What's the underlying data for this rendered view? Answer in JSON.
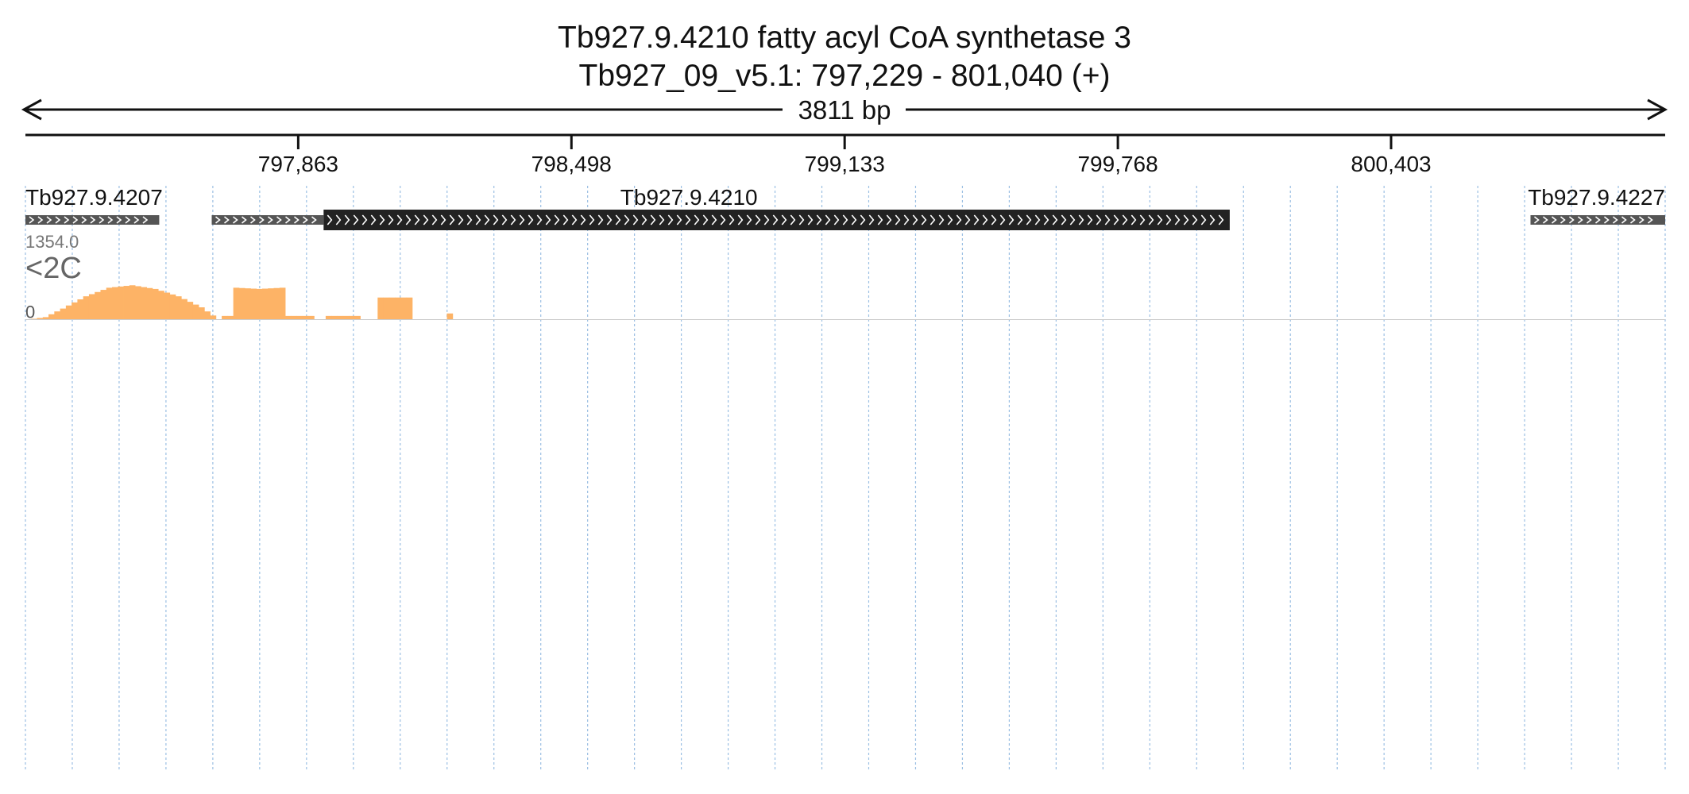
{
  "title_line1": "Tb927.9.4210  fatty acyl CoA synthetase 3",
  "title_line2": "Tb927_09_v5.1: 797,229 - 801,040 (+)",
  "span_label": "3811 bp",
  "colors": {
    "text": "#111111",
    "gene_box": "#222222",
    "gene_thin": "#555555",
    "grid": "#9bbfe3",
    "separator": "#cccccc"
  },
  "chart_data": {
    "type": "area",
    "x_range": [
      797229,
      801040
    ],
    "x_ticks": [
      797863,
      798498,
      799133,
      799768,
      800403
    ],
    "x_tick_labels": [
      "797,863",
      "798,498",
      "799,133",
      "799,768",
      "800,403"
    ],
    "genes": [
      {
        "name": "Tb927.9.4207",
        "show_label": true,
        "strand": "+",
        "segments": [
          {
            "start": 797229,
            "end": 797540,
            "style": "thin"
          }
        ]
      },
      {
        "name": "Tb927.9.4210",
        "show_label": true,
        "strand": "+",
        "segments": [
          {
            "start": 797662,
            "end": 797922,
            "style": "thin"
          },
          {
            "start": 797922,
            "end": 800028,
            "style": "thick"
          }
        ]
      },
      {
        "name": "Tb927.9.4227",
        "show_label": true,
        "strand": "+",
        "segments": [
          {
            "start": 800727,
            "end": 801040,
            "style": "thin"
          }
        ]
      }
    ],
    "track_max_label": "1354.0",
    "track_min_label": "0",
    "ylim": [
      0,
      1354
    ],
    "bins_per_track": 284,
    "tracks": [
      {
        "name": "<2C",
        "color": "#fdb366",
        "profile": [
          [
            0,
            0
          ],
          [
            3,
            40
          ],
          [
            6,
            180
          ],
          [
            10,
            380
          ],
          [
            14,
            520
          ],
          [
            18,
            560
          ],
          [
            22,
            500
          ],
          [
            26,
            380
          ],
          [
            30,
            200
          ],
          [
            33,
            0
          ],
          [
            34,
            60
          ],
          [
            35,
            60
          ],
          [
            36,
            520
          ],
          [
            40,
            500
          ],
          [
            44,
            520
          ],
          [
            45,
            60
          ],
          [
            48,
            60
          ],
          [
            49,
            60
          ],
          [
            50,
            0
          ],
          [
            51,
            0
          ],
          [
            52,
            60
          ],
          [
            56,
            60
          ],
          [
            57,
            60
          ],
          [
            58,
            0
          ],
          [
            59,
            0
          ],
          [
            60,
            0
          ],
          [
            61,
            360
          ],
          [
            65,
            360
          ],
          [
            66,
            360
          ],
          [
            67,
            0
          ],
          [
            68,
            0
          ],
          [
            71,
            0
          ],
          [
            72,
            0
          ],
          [
            73,
            100
          ],
          [
            74,
            0
          ],
          [
            75,
            0
          ],
          [
            76,
            0
          ],
          [
            77,
            0
          ],
          [
            78,
            0
          ],
          [
            79,
            0
          ],
          [
            80,
            0
          ],
          [
            81,
            0
          ],
          [
            82,
            0
          ],
          [
            83,
            0
          ],
          [
            84,
            0
          ],
          [
            85,
            0
          ],
          [
            86,
            0
          ],
          [
            87,
            0
          ],
          [
            88,
            0
          ],
          [
            89,
            0
          ],
          [
            90,
            0
          ],
          [
            91,
            0
          ],
          [
            92,
            0
          ],
          [
            93,
            0
          ],
          [
            94,
            0
          ],
          [
            95,
            0
          ],
          [
            96,
            0
          ],
          [
            97,
            0
          ],
          [
            98,
            0
          ],
          [
            99,
            0
          ],
          [
            100,
            0
          ],
          [
            101,
            0
          ],
          [
            102,
            0
          ],
          [
            103,
            0
          ],
          [
            104,
            0
          ],
          [
            105,
            0
          ],
          [
            106,
            0
          ],
          [
            107,
            0
          ],
          [
            108,
            0
          ],
          [
            109,
            0
          ],
          [
            110,
            0
          ],
          [
            111,
            0
          ],
          [
            112,
            0
          ],
          [
            113,
            0
          ],
          [
            114,
            0
          ],
          [
            115,
            0
          ],
          [
            116,
            0
          ],
          [
            117,
            0
          ],
          [
            118,
            0
          ],
          [
            119,
            0
          ],
          [
            120,
            0
          ],
          [
            121,
            0
          ],
          [
            122,
            0
          ],
          [
            123,
            0
          ],
          [
            124,
            0
          ],
          [
            125,
            0
          ],
          [
            126,
            0
          ],
          [
            127,
            0
          ],
          [
            128,
            0
          ],
          [
            129,
            0
          ],
          [
            130,
            0
          ],
          [
            131,
            0
          ],
          [
            132,
            0
          ],
          [
            133,
            0
          ],
          [
            134,
            0
          ],
          [
            135,
            0
          ],
          [
            136,
            0
          ],
          [
            137,
            0
          ],
          [
            138,
            0
          ],
          [
            139,
            0
          ],
          [
            140,
            0
          ],
          [
            141,
            0
          ],
          [
            142,
            0
          ],
          [
            143,
            0
          ],
          [
            144,
            0
          ],
          [
            145,
            0
          ],
          [
            146,
            0
          ],
          [
            147,
            0
          ],
          [
            148,
            0
          ],
          [
            149,
            0
          ],
          [
            150,
            0
          ],
          [
            151,
            0
          ],
          [
            152,
            0
          ],
          [
            153,
            0
          ],
          [
            154,
            0
          ],
          [
            155,
            0
          ],
          [
            156,
            0
          ],
          [
            157,
            0
          ],
          [
            158,
            0
          ],
          [
            159,
            0
          ],
          [
            160,
            0
          ],
          [
            161,
            0
          ],
          [
            162,
            0
          ],
          [
            163,
            0
          ],
          [
            164,
            0
          ],
          [
            165,
            0
          ],
          [
            166,
            0
          ],
          [
            167,
            0
          ],
          [
            168,
            0
          ],
          [
            169,
            0
          ],
          [
            170,
            0
          ],
          [
            171,
            0
          ],
          [
            172,
            0
          ],
          [
            173,
            0
          ],
          [
            174,
            0
          ],
          [
            175,
            0
          ],
          [
            176,
            0
          ],
          [
            177,
            0
          ],
          [
            178,
            0
          ],
          [
            179,
            0
          ],
          [
            180,
            0
          ],
          [
            181,
            0
          ],
          [
            182,
            0
          ],
          [
            183,
            0
          ],
          [
            184,
            0
          ],
          [
            185,
            0
          ],
          [
            186,
            0
          ],
          [
            187,
            0
          ],
          [
            188,
            0
          ],
          [
            189,
            0
          ],
          [
            190,
            0
          ],
          [
            191,
            0
          ],
          [
            192,
            0
          ],
          [
            193,
            0
          ],
          [
            194,
            0
          ],
          [
            195,
            0
          ],
          [
            196,
            0
          ],
          [
            197,
            0
          ],
          [
            198,
            0
          ],
          [
            199,
            0
          ],
          [
            200,
            0
          ],
          [
            201,
            0
          ],
          [
            202,
            0
          ],
          [
            203,
            0
          ],
          [
            204,
            0
          ],
          [
            205,
            0
          ],
          [
            206,
            0
          ],
          [
            207,
            0
          ],
          [
            208,
            0
          ],
          [
            209,
            0
          ],
          [
            210,
            0
          ],
          [
            211,
            0
          ],
          [
            212,
            0
          ],
          [
            213,
            0
          ],
          [
            214,
            0
          ],
          [
            215,
            0
          ],
          [
            216,
            0
          ],
          [
            217,
            0
          ],
          [
            218,
            0
          ],
          [
            219,
            0
          ],
          [
            220,
            0
          ],
          [
            221,
            0
          ],
          [
            222,
            0
          ],
          [
            223,
            0
          ],
          [
            224,
            0
          ],
          [
            225,
            0
          ],
          [
            226,
            0
          ],
          [
            227,
            0
          ],
          [
            228,
            0
          ],
          [
            229,
            0
          ],
          [
            230,
            0
          ],
          [
            231,
            0
          ],
          [
            232,
            0
          ],
          [
            233,
            0
          ],
          [
            234,
            0
          ],
          [
            235,
            0
          ],
          [
            236,
            0
          ],
          [
            237,
            0
          ],
          [
            238,
            0
          ],
          [
            239,
            0
          ],
          [
            240,
            0
          ],
          [
            241,
            0
          ],
          [
            242,
            0
          ],
          [
            243,
            0
          ],
          [
            244,
            0
          ],
          [
            245,
            0
          ],
          [
            246,
            0
          ],
          [
            247,
            0
          ],
          [
            248,
            0
          ],
          [
            249,
            0
          ],
          [
            250,
            0
          ],
          [
            251,
            0
          ],
          [
            252,
            0
          ],
          [
            253,
            0
          ],
          [
            254,
            0
          ],
          [
            255,
            0
          ],
          [
            256,
            0
          ],
          [
            257,
            0
          ],
          [
            258,
            0
          ],
          [
            259,
            0
          ],
          [
            260,
            0
          ],
          [
            261,
            0
          ],
          [
            262,
            0
          ],
          [
            263,
            0
          ],
          [
            264,
            0
          ],
          [
            265,
            0
          ],
          [
            266,
            0
          ],
          [
            267,
            0
          ],
          [
            268,
            0
          ],
          [
            269,
            0
          ],
          [
            270,
            0
          ],
          [
            271,
            0
          ],
          [
            272,
            0
          ],
          [
            273,
            0
          ],
          [
            274,
            0
          ],
          [
            275,
            0
          ],
          [
            276,
            0
          ],
          [
            277,
            0
          ],
          [
            278,
            0
          ],
          [
            279,
            0
          ],
          [
            280,
            0
          ],
          [
            281,
            0
          ],
          [
            282,
            0
          ],
          [
            283,
            0
          ]
        ]
      }
    ]
  }
}
